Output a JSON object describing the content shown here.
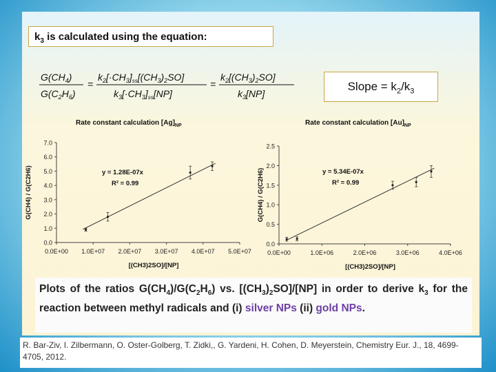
{
  "equation_label": "k3 is calculated using the equation:",
  "slope_label": "Slope = k2/k3",
  "caption": {
    "text_before": "Plots of the ratios G(CH4)/G(C2H6) vs. [(CH3)2SO]/[NP] in order to derive k3 for the reaction between methyl radicals and (i) ",
    "silver": "silver NPs",
    "middle": " (ii) ",
    "gold": "gold NPs",
    "end": "."
  },
  "reference": "R. Bar-Ziv, I. Zilbermann, O. Oster-Golberg, T. Zidki,, G. Yardeni, H. Cohen, D. Meyerstein, Chemistry Eur. J., 18, 4699-4705, 2012.",
  "colors": {
    "accent_purple": "#6d3fa5",
    "border_gold": "#c9a640",
    "background_blue": "#1e90c8"
  },
  "chart_data": [
    {
      "type": "scatter",
      "title": "Rate constant calculation [Ag]NP",
      "xlabel": "[(CH3)2SO]/[NP]",
      "ylabel": "G(CH4) / G(C2H6)",
      "xlim": [
        0,
        50000000
      ],
      "ylim": [
        0,
        7
      ],
      "xticks": [
        "0.0E+00",
        "1.0E+07",
        "2.0E+07",
        "3.0E+07",
        "4.0E+07",
        "5.0E+07"
      ],
      "yticks": [
        "0.0",
        "1.0",
        "2.0",
        "3.0",
        "4.0",
        "5.0",
        "6.0",
        "7.0"
      ],
      "fit_equation": "y = 1.28E-07x",
      "r_squared": "R² = 0.99",
      "slope": 1.28e-07,
      "points": [
        {
          "x": 8000000,
          "y": 0.9,
          "err": 0.1
        },
        {
          "x": 14000000,
          "y": 1.8,
          "err": 0.3
        },
        {
          "x": 36500000,
          "y": 4.9,
          "err": 0.45
        },
        {
          "x": 42500000,
          "y": 5.35,
          "err": 0.3
        }
      ]
    },
    {
      "type": "scatter",
      "title": "Rate constant calculation [Au]NP",
      "xlabel": "[(CH3)2SO]/[NP]",
      "ylabel": "G(CH4) / G(C2H6)",
      "xlim": [
        0,
        4000000
      ],
      "ylim": [
        0,
        2.5
      ],
      "xticks": [
        "0.0E+00",
        "1.0E+06",
        "2.0E+06",
        "3.0E+06",
        "4.0E+06"
      ],
      "yticks": [
        "0.0",
        "0.5",
        "1.0",
        "1.5",
        "2.0",
        "2.5"
      ],
      "fit_equation": "y = 5.34E-07x",
      "r_squared": "R² = 0.99",
      "slope": 5.34e-07,
      "points": [
        {
          "x": 180000,
          "y": 0.12,
          "err": 0.05
        },
        {
          "x": 420000,
          "y": 0.13,
          "err": 0.05
        },
        {
          "x": 2650000,
          "y": 1.5,
          "err": 0.1
        },
        {
          "x": 3200000,
          "y": 1.58,
          "err": 0.12
        },
        {
          "x": 3550000,
          "y": 1.85,
          "err": 0.15
        }
      ]
    }
  ]
}
